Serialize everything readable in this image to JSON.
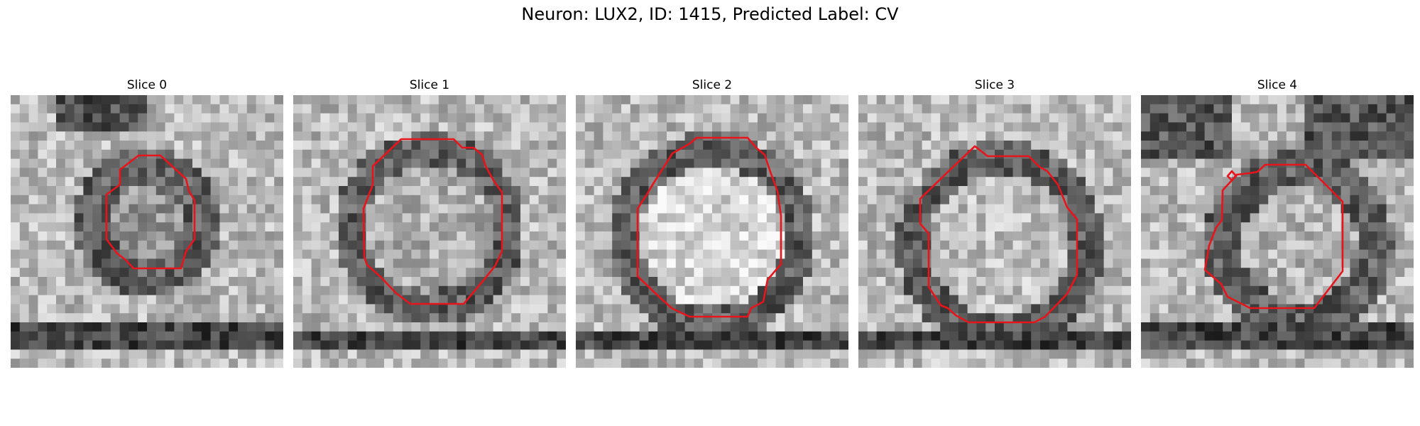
{
  "figure": {
    "title": "Neuron: LUX2, ID: 1415, Predicted Label: CV"
  },
  "panels": [
    {
      "title": "Slice 0"
    },
    {
      "title": "Slice 1"
    },
    {
      "title": "Slice 2"
    },
    {
      "title": "Slice 3"
    },
    {
      "title": "Slice 4"
    }
  ],
  "style": {
    "contour_color": "#e8141c",
    "colormap": "grayscale",
    "image_grid_cells": 30
  }
}
